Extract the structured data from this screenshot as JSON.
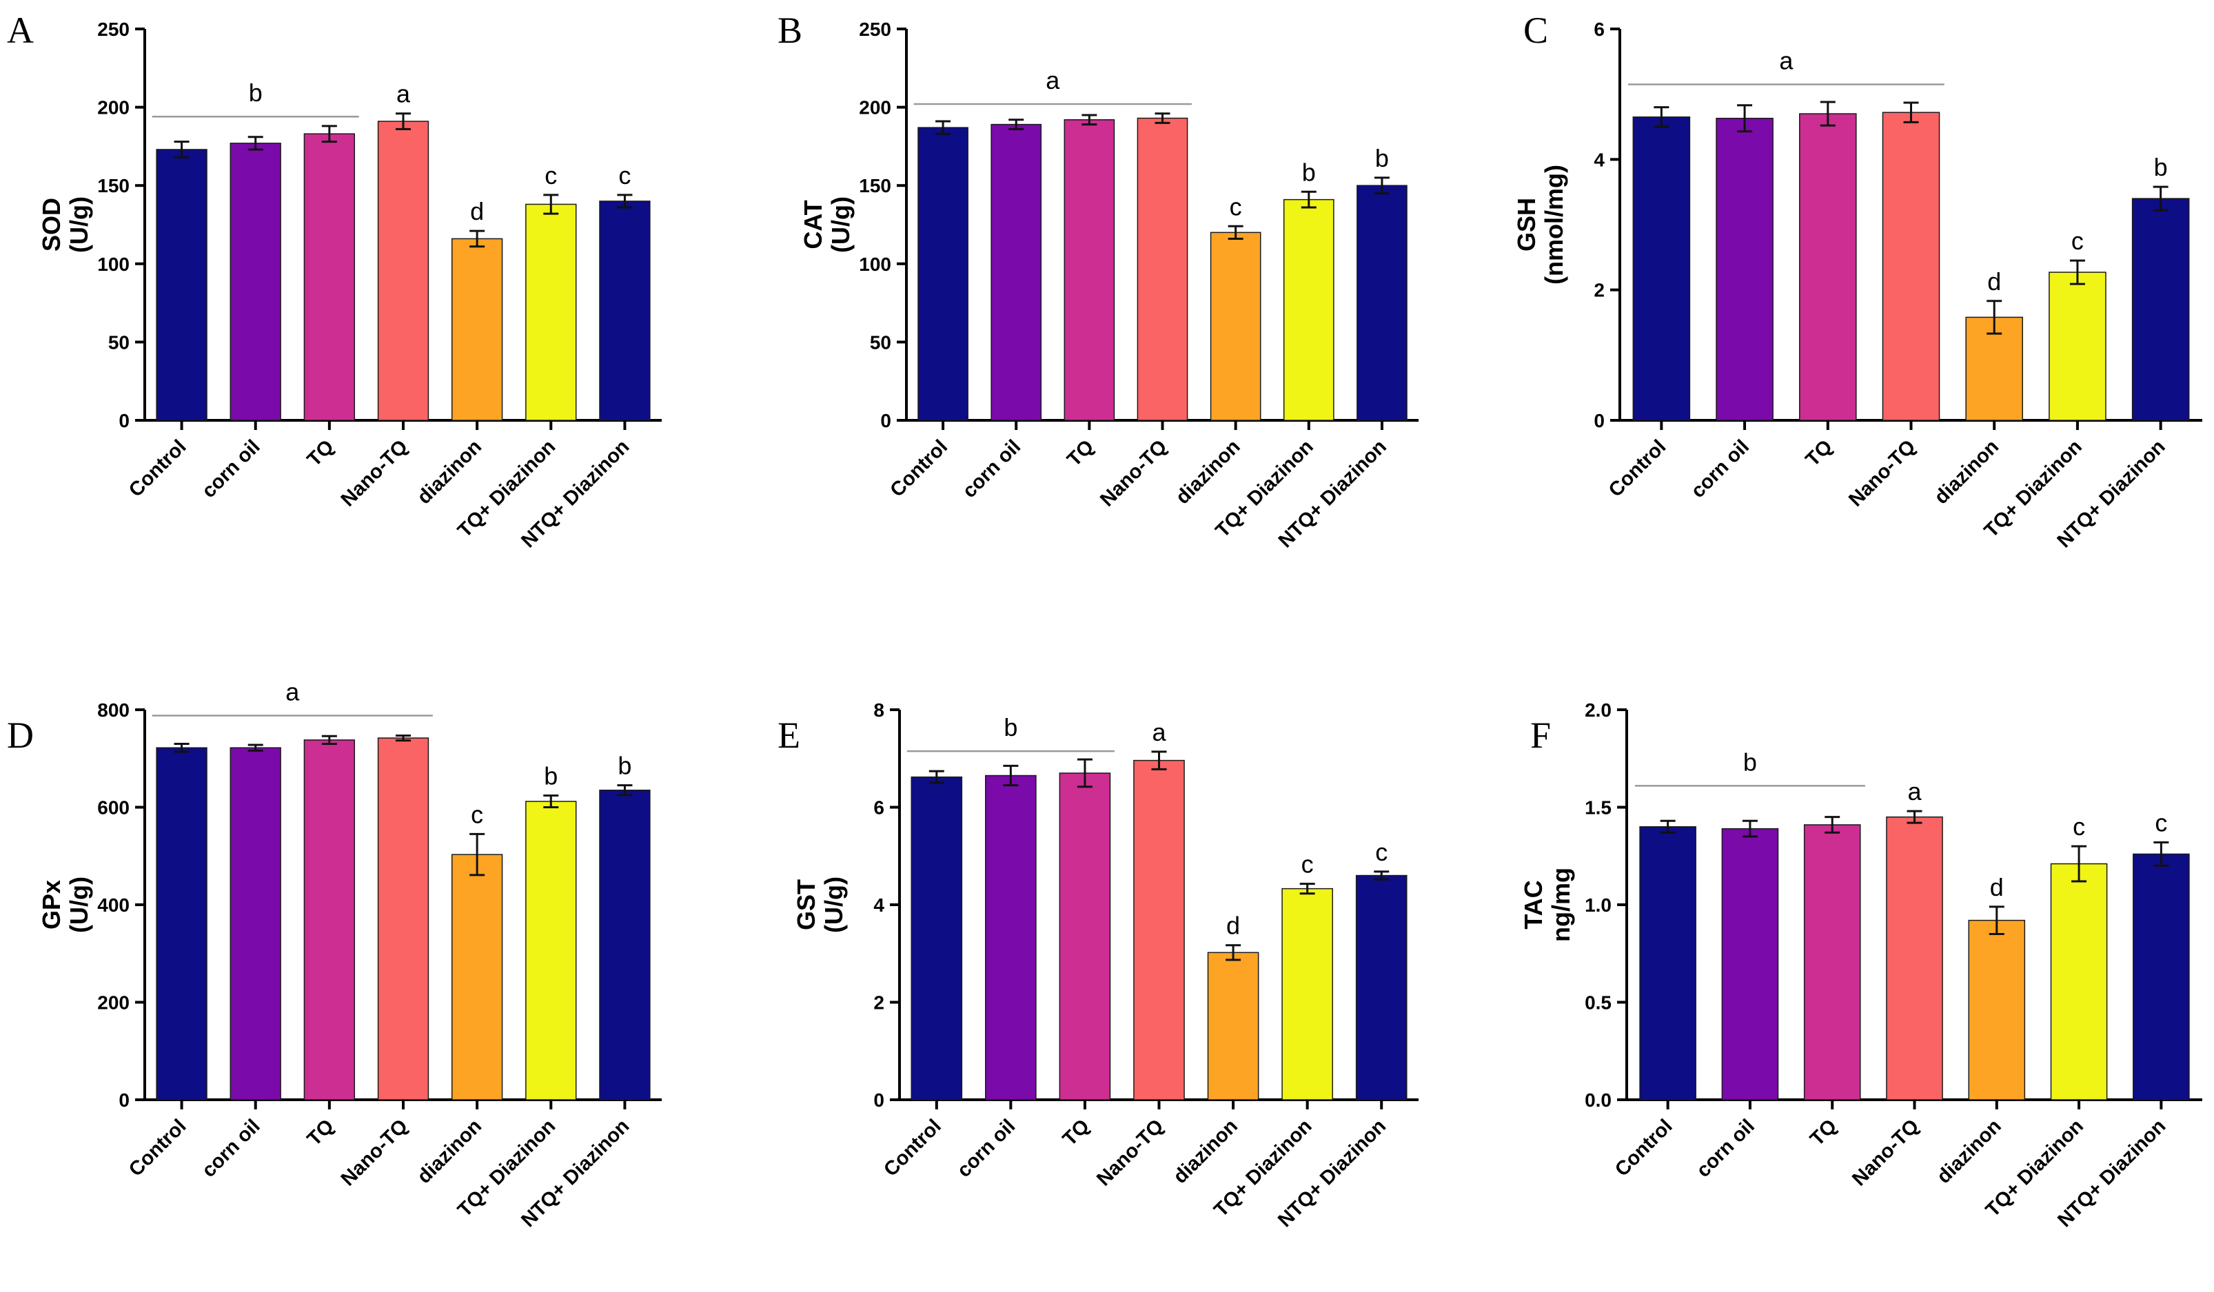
{
  "chart_data": [
    {
      "panel": "A",
      "type": "bar",
      "ylabel": [
        "SOD",
        "(U/g)"
      ],
      "categories": [
        "Control",
        "corn oil",
        "TQ",
        "Nano-TQ",
        "diazinon",
        "TQ+ Diazinon",
        "NTQ+ Diazinon"
      ],
      "values": [
        173,
        177,
        183,
        191,
        116,
        138,
        140
      ],
      "errors": [
        5,
        4,
        5,
        5,
        5,
        6,
        4
      ],
      "ylim": [
        0,
        250
      ],
      "yticks": [
        "0",
        "50",
        "100",
        "150",
        "200",
        "250"
      ],
      "letters": [
        "",
        "",
        "",
        "a",
        "d",
        "c",
        "c"
      ],
      "group_letter": {
        "label": "b",
        "from": 0,
        "to": 2,
        "value": 194
      }
    },
    {
      "panel": "B",
      "type": "bar",
      "ylabel": [
        "CAT",
        "(U/g)"
      ],
      "categories": [
        "Control",
        "corn oil",
        "TQ",
        "Nano-TQ",
        "diazinon",
        "TQ+ Diazinon",
        "NTQ+ Diazinon"
      ],
      "values": [
        187,
        189,
        192,
        193,
        120,
        141,
        150
      ],
      "errors": [
        4,
        3,
        3,
        3,
        4,
        5,
        5
      ],
      "ylim": [
        0,
        250
      ],
      "yticks": [
        "0",
        "50",
        "100",
        "150",
        "200",
        "250"
      ],
      "letters": [
        "",
        "",
        "",
        "",
        "c",
        "b",
        "b"
      ],
      "group_letter": {
        "label": "a",
        "from": 0,
        "to": 3,
        "value": 202
      }
    },
    {
      "panel": "C",
      "type": "bar",
      "ylabel": [
        "GSH",
        "(nmol/mg)"
      ],
      "categories": [
        "Control",
        "corn oil",
        "TQ",
        "Nano-TQ",
        "diazinon",
        "TQ+ Diazinon",
        "NTQ+ Diazinon"
      ],
      "values": [
        4.65,
        4.63,
        4.7,
        4.72,
        1.58,
        2.27,
        3.4
      ],
      "errors": [
        0.15,
        0.2,
        0.18,
        0.15,
        0.25,
        0.18,
        0.18
      ],
      "ylim": [
        0,
        6
      ],
      "yticks": [
        "0",
        "2",
        "4",
        "6"
      ],
      "letters": [
        "",
        "",
        "",
        "",
        "d",
        "c",
        "b"
      ],
      "group_letter": {
        "label": "a",
        "from": 0,
        "to": 3,
        "value": 5.15
      }
    },
    {
      "panel": "D",
      "type": "bar",
      "ylabel": [
        "GPx",
        "(U/g)"
      ],
      "categories": [
        "Control",
        "corn oil",
        "TQ",
        "Nano-TQ",
        "diazinon",
        "TQ+ Diazinon",
        "NTQ+ Diazinon"
      ],
      "values": [
        722,
        722,
        738,
        742,
        503,
        612,
        635
      ],
      "errors": [
        8,
        6,
        8,
        5,
        42,
        12,
        10
      ],
      "ylim": [
        0,
        800
      ],
      "yticks": [
        "0",
        "200",
        "400",
        "600",
        "800"
      ],
      "letters": [
        "",
        "",
        "",
        "",
        "c",
        "b",
        "b"
      ],
      "group_letter": {
        "label": "a",
        "from": 0,
        "to": 3,
        "value": 788
      }
    },
    {
      "panel": "E",
      "type": "bar",
      "ylabel": [
        "GST",
        "(U/g)"
      ],
      "categories": [
        "Control",
        "corn oil",
        "TQ",
        "Nano-TQ",
        "diazinon",
        "TQ+ Diazinon",
        "NTQ+ Diazinon"
      ],
      "values": [
        6.62,
        6.65,
        6.7,
        6.96,
        3.02,
        4.33,
        4.6
      ],
      "errors": [
        0.12,
        0.2,
        0.28,
        0.18,
        0.15,
        0.1,
        0.08
      ],
      "ylim": [
        0,
        8
      ],
      "yticks": [
        "0",
        "2",
        "4",
        "6",
        "8"
      ],
      "letters": [
        "",
        "",
        "",
        "a",
        "d",
        "c",
        "c"
      ],
      "group_letter": {
        "label": "b",
        "from": 0,
        "to": 2,
        "value": 7.15
      }
    },
    {
      "panel": "F",
      "type": "bar",
      "ylabel": [
        "TAC",
        "ng/mg"
      ],
      "categories": [
        "Control",
        "corn oil",
        "TQ",
        "Nano-TQ",
        "diazinon",
        "TQ+ Diazinon",
        "NTQ+ Diazinon"
      ],
      "values": [
        1.4,
        1.39,
        1.41,
        1.45,
        0.92,
        1.21,
        1.26
      ],
      "errors": [
        0.03,
        0.04,
        0.04,
        0.03,
        0.07,
        0.09,
        0.06
      ],
      "ylim": [
        0,
        2
      ],
      "yticks": [
        "0.0",
        "0.5",
        "1.0",
        "1.5",
        "2.0"
      ],
      "letters": [
        "",
        "",
        "",
        "a",
        "d",
        "c",
        "c"
      ],
      "group_letter": {
        "label": "b",
        "from": 0,
        "to": 2,
        "value": 1.61
      }
    }
  ],
  "colors": [
    "#0d0d85",
    "#7a0aaa",
    "#cc2e92",
    "#fa6464",
    "#fda424",
    "#f0f515",
    "#0d0d85"
  ]
}
